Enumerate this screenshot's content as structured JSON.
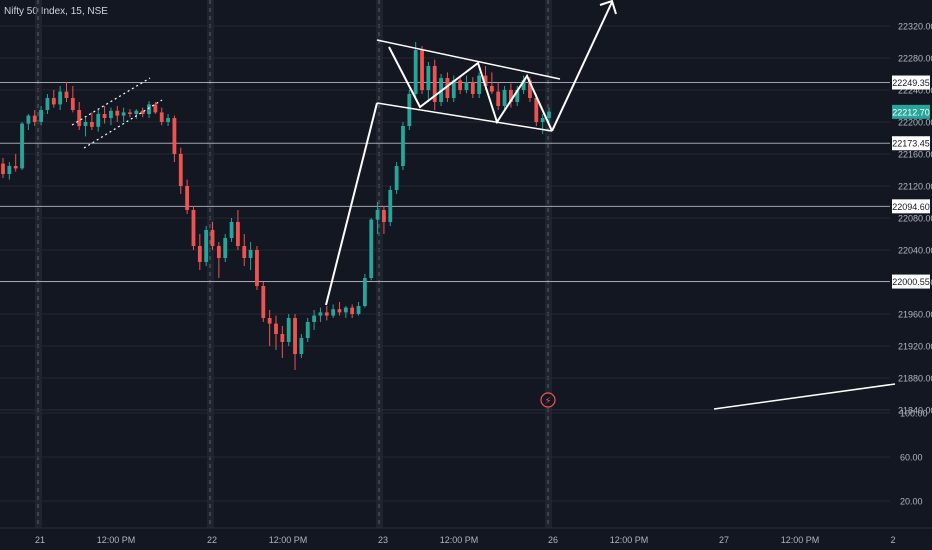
{
  "header": {
    "title": "Nifty 50 Index, 15, NSE"
  },
  "colors": {
    "bg": "#131722",
    "up": "#26a69a",
    "down": "#ef5350",
    "grid": "#242733",
    "text": "#b2b5be",
    "hline": "#d1d4dc",
    "draw": "#ffffff",
    "badge": "#26a69a",
    "session": "#2a2e39"
  },
  "chart_data": {
    "type": "candlestick",
    "instrument": "Nifty 50 Index",
    "interval": "15",
    "exchange": "NSE",
    "ylim": [
      21840,
      22330
    ],
    "y_ticks": [
      22320,
      22280,
      22240,
      22200,
      22160,
      22120,
      22080,
      22040,
      22000,
      21960,
      21920,
      21880,
      21840
    ],
    "x_ticks": [
      "21",
      "12:00 PM",
      "22",
      "12:00 PM",
      "23",
      "12:00 PM",
      "26",
      "12:00 PM",
      "27",
      "12:00 PM",
      "2"
    ],
    "horizontal_levels": [
      22249.35,
      22173.45,
      22094.6,
      22000.55
    ],
    "last_price": 22212.7,
    "indicator_ticks": [
      100,
      60,
      20
    ],
    "candles": [
      {
        "o": 22148,
        "h": 22155,
        "l": 22130,
        "c": 22135
      },
      {
        "o": 22135,
        "h": 22150,
        "l": 22128,
        "c": 22145
      },
      {
        "o": 22145,
        "h": 22160,
        "l": 22138,
        "c": 22142
      },
      {
        "o": 22142,
        "h": 22200,
        "l": 22140,
        "c": 22198
      },
      {
        "o": 22198,
        "h": 22210,
        "l": 22190,
        "c": 22208
      },
      {
        "o": 22208,
        "h": 22215,
        "l": 22195,
        "c": 22200
      },
      {
        "o": 22200,
        "h": 22220,
        "l": 22196,
        "c": 22215
      },
      {
        "o": 22215,
        "h": 22235,
        "l": 22210,
        "c": 22230
      },
      {
        "o": 22230,
        "h": 22240,
        "l": 22218,
        "c": 22222
      },
      {
        "o": 22222,
        "h": 22245,
        "l": 22215,
        "c": 22238
      },
      {
        "o": 22238,
        "h": 22250,
        "l": 22225,
        "c": 22230
      },
      {
        "o": 22230,
        "h": 22245,
        "l": 22212,
        "c": 22215
      },
      {
        "o": 22215,
        "h": 22225,
        "l": 22190,
        "c": 22195
      },
      {
        "o": 22195,
        "h": 22205,
        "l": 22182,
        "c": 22200
      },
      {
        "o": 22200,
        "h": 22212,
        "l": 22190,
        "c": 22194
      },
      {
        "o": 22194,
        "h": 22215,
        "l": 22188,
        "c": 22210
      },
      {
        "o": 22210,
        "h": 22220,
        "l": 22198,
        "c": 22205
      },
      {
        "o": 22205,
        "h": 22218,
        "l": 22196,
        "c": 22214
      },
      {
        "o": 22214,
        "h": 22220,
        "l": 22200,
        "c": 22208
      },
      {
        "o": 22208,
        "h": 22218,
        "l": 22200,
        "c": 22212
      },
      {
        "o": 22212,
        "h": 22216,
        "l": 22206,
        "c": 22210
      },
      {
        "o": 22210,
        "h": 22216,
        "l": 22204,
        "c": 22214
      },
      {
        "o": 22214,
        "h": 22218,
        "l": 22206,
        "c": 22210
      },
      {
        "o": 22210,
        "h": 22226,
        "l": 22205,
        "c": 22222
      },
      {
        "o": 22222,
        "h": 22225,
        "l": 22210,
        "c": 22212
      },
      {
        "o": 22212,
        "h": 22218,
        "l": 22196,
        "c": 22200
      },
      {
        "o": 22200,
        "h": 22210,
        "l": 22195,
        "c": 22205
      },
      {
        "o": 22205,
        "h": 22208,
        "l": 22150,
        "c": 22160
      },
      {
        "o": 22160,
        "h": 22168,
        "l": 22110,
        "c": 22120
      },
      {
        "o": 22120,
        "h": 22128,
        "l": 22085,
        "c": 22090
      },
      {
        "o": 22090,
        "h": 22095,
        "l": 22040,
        "c": 22045
      },
      {
        "o": 22045,
        "h": 22060,
        "l": 22015,
        "c": 22025
      },
      {
        "o": 22025,
        "h": 22070,
        "l": 22020,
        "c": 22065
      },
      {
        "o": 22065,
        "h": 22075,
        "l": 22040,
        "c": 22045
      },
      {
        "o": 22045,
        "h": 22050,
        "l": 22005,
        "c": 22030
      },
      {
        "o": 22030,
        "h": 22060,
        "l": 22025,
        "c": 22055
      },
      {
        "o": 22055,
        "h": 22080,
        "l": 22050,
        "c": 22075
      },
      {
        "o": 22075,
        "h": 22090,
        "l": 22040,
        "c": 22045
      },
      {
        "o": 22045,
        "h": 22060,
        "l": 22020,
        "c": 22030
      },
      {
        "o": 22030,
        "h": 22050,
        "l": 22015,
        "c": 22040
      },
      {
        "o": 22040,
        "h": 22045,
        "l": 21990,
        "c": 21995
      },
      {
        "o": 21995,
        "h": 22000,
        "l": 21950,
        "c": 21955
      },
      {
        "o": 21955,
        "h": 21965,
        "l": 21920,
        "c": 21948
      },
      {
        "o": 21948,
        "h": 21958,
        "l": 21915,
        "c": 21935
      },
      {
        "o": 21935,
        "h": 21945,
        "l": 21905,
        "c": 21925
      },
      {
        "o": 21925,
        "h": 21960,
        "l": 21920,
        "c": 21955
      },
      {
        "o": 21955,
        "h": 21960,
        "l": 21890,
        "c": 21910
      },
      {
        "o": 21910,
        "h": 21935,
        "l": 21905,
        "c": 21930
      },
      {
        "o": 21930,
        "h": 21955,
        "l": 21925,
        "c": 21950
      },
      {
        "o": 21950,
        "h": 21965,
        "l": 21940,
        "c": 21958
      },
      {
        "o": 21958,
        "h": 21968,
        "l": 21950,
        "c": 21962
      },
      {
        "o": 21962,
        "h": 21970,
        "l": 21952,
        "c": 21958
      },
      {
        "o": 21958,
        "h": 21972,
        "l": 21955,
        "c": 21966
      },
      {
        "o": 21966,
        "h": 21975,
        "l": 21958,
        "c": 21962
      },
      {
        "o": 21962,
        "h": 21970,
        "l": 21955,
        "c": 21968
      },
      {
        "o": 21968,
        "h": 21972,
        "l": 21955,
        "c": 21960
      },
      {
        "o": 21960,
        "h": 21975,
        "l": 21958,
        "c": 21970
      },
      {
        "o": 21970,
        "h": 22010,
        "l": 21968,
        "c": 22005
      },
      {
        "o": 22005,
        "h": 22080,
        "l": 22002,
        "c": 22078
      },
      {
        "o": 22078,
        "h": 22100,
        "l": 22060,
        "c": 22090
      },
      {
        "o": 22090,
        "h": 22095,
        "l": 22060,
        "c": 22075
      },
      {
        "o": 22075,
        "h": 22120,
        "l": 22070,
        "c": 22115
      },
      {
        "o": 22115,
        "h": 22150,
        "l": 22110,
        "c": 22145
      },
      {
        "o": 22145,
        "h": 22200,
        "l": 22140,
        "c": 22195
      },
      {
        "o": 22195,
        "h": 22240,
        "l": 22190,
        "c": 22235
      },
      {
        "o": 22235,
        "h": 22300,
        "l": 22230,
        "c": 22290
      },
      {
        "o": 22290,
        "h": 22295,
        "l": 22235,
        "c": 22240
      },
      {
        "o": 22240,
        "h": 22275,
        "l": 22225,
        "c": 22270
      },
      {
        "o": 22270,
        "h": 22278,
        "l": 22215,
        "c": 22225
      },
      {
        "o": 22225,
        "h": 22260,
        "l": 22220,
        "c": 22255
      },
      {
        "o": 22255,
        "h": 22262,
        "l": 22225,
        "c": 22230
      },
      {
        "o": 22230,
        "h": 22258,
        "l": 22225,
        "c": 22252
      },
      {
        "o": 22252,
        "h": 22256,
        "l": 22235,
        "c": 22240
      },
      {
        "o": 22240,
        "h": 22258,
        "l": 22236,
        "c": 22250
      },
      {
        "o": 22250,
        "h": 22256,
        "l": 22230,
        "c": 22235
      },
      {
        "o": 22235,
        "h": 22262,
        "l": 22230,
        "c": 22258
      },
      {
        "o": 22258,
        "h": 22270,
        "l": 22240,
        "c": 22245
      },
      {
        "o": 22245,
        "h": 22262,
        "l": 22235,
        "c": 22238
      },
      {
        "o": 22238,
        "h": 22250,
        "l": 22215,
        "c": 22220
      },
      {
        "o": 22220,
        "h": 22245,
        "l": 22215,
        "c": 22240
      },
      {
        "o": 22240,
        "h": 22248,
        "l": 22218,
        "c": 22225
      },
      {
        "o": 22225,
        "h": 22245,
        "l": 22220,
        "c": 22240
      },
      {
        "o": 22240,
        "h": 22258,
        "l": 22235,
        "c": 22252
      },
      {
        "o": 22252,
        "h": 22256,
        "l": 22225,
        "c": 22230
      },
      {
        "o": 22230,
        "h": 22235,
        "l": 22195,
        "c": 22200
      },
      {
        "o": 22200,
        "h": 22210,
        "l": 22185,
        "c": 22205
      },
      {
        "o": 22205,
        "h": 22218,
        "l": 22198,
        "c": 22213
      }
    ]
  }
}
